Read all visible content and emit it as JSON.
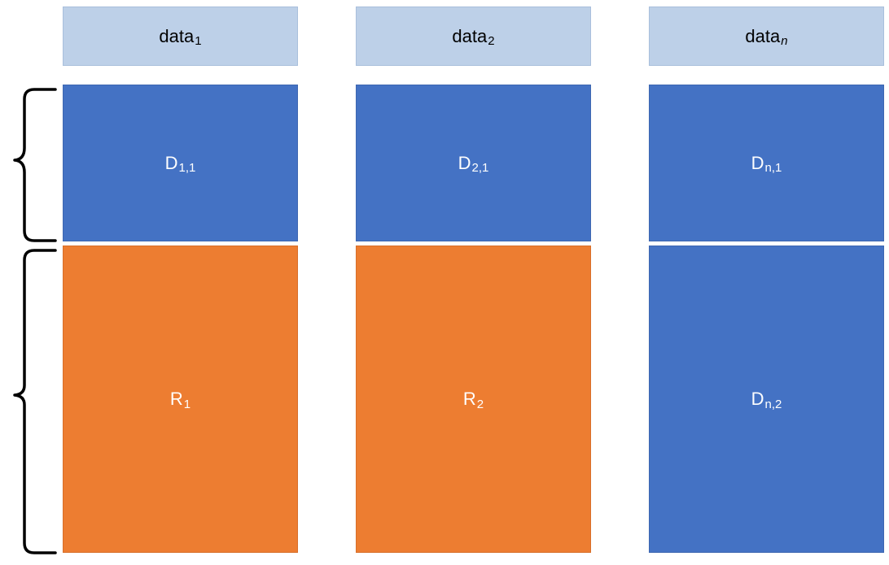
{
  "columns": [
    {
      "header": {
        "base": "data",
        "sub": "1",
        "sub_italic": false
      },
      "top": {
        "base": "D",
        "sub": "1,1",
        "color": "#4472c4"
      },
      "bottom": {
        "base": "R",
        "sub": "1",
        "color": "#ed7d31"
      }
    },
    {
      "header": {
        "base": "data",
        "sub": "2",
        "sub_italic": false
      },
      "top": {
        "base": "D",
        "sub": "2,1",
        "color": "#4472c4"
      },
      "bottom": {
        "base": "R",
        "sub": "2",
        "color": "#ed7d31"
      }
    },
    {
      "header": {
        "base": "data",
        "sub": "n",
        "sub_italic": true
      },
      "top": {
        "base": "D",
        "sub": "n,1",
        "color": "#4472c4"
      },
      "bottom": {
        "base": "D",
        "sub": "n,2",
        "color": "#4472c4"
      }
    }
  ],
  "colors": {
    "header_fill": "#bdd0e8",
    "blue_fill": "#4472c4",
    "orange_fill": "#ed7d31",
    "brace_stroke": "#000000"
  },
  "icons": [
    "brace-top-icon",
    "brace-bottom-icon"
  ]
}
